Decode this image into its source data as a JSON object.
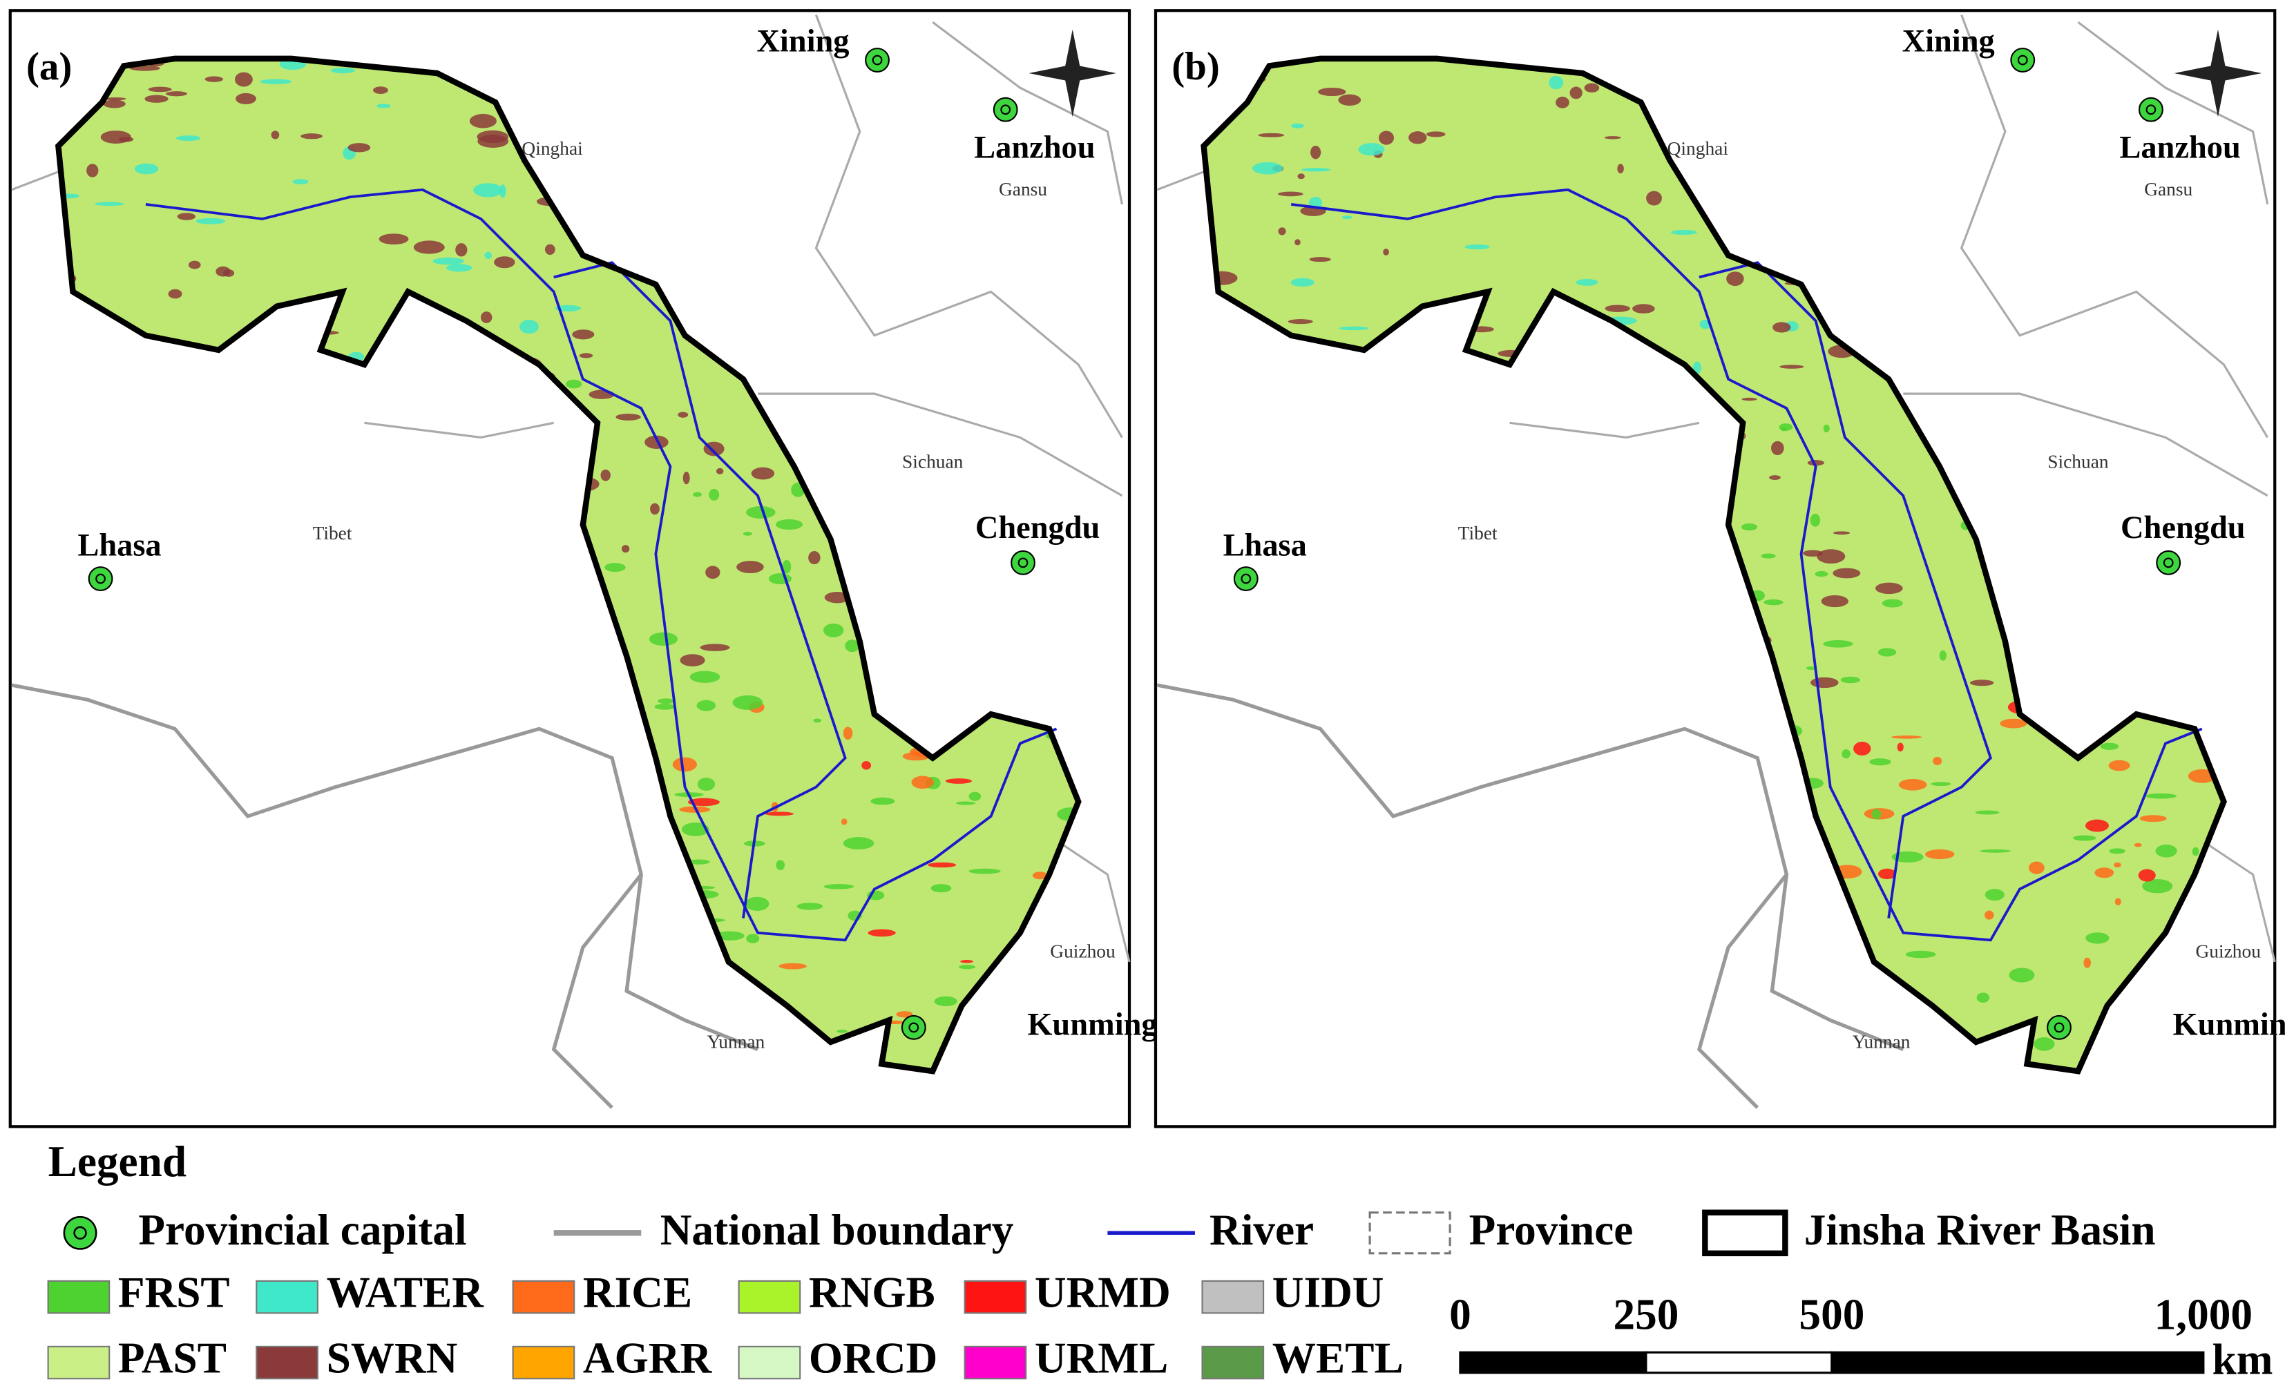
{
  "panels": [
    {
      "label": "(a)",
      "cities": [
        {
          "name": "Xining"
        },
        {
          "name": "Lanzhou"
        },
        {
          "name": "Chengdu"
        },
        {
          "name": "Lhasa"
        },
        {
          "name": "Kunming"
        }
      ],
      "provinces": [
        {
          "name": "Qinghai"
        },
        {
          "name": "Gansu"
        },
        {
          "name": "Sichuan"
        },
        {
          "name": "Tibet"
        },
        {
          "name": "Guizhou"
        },
        {
          "name": "Yunnan"
        }
      ]
    },
    {
      "label": "(b)",
      "cities": [
        {
          "name": "Xining"
        },
        {
          "name": "Lanzhou"
        },
        {
          "name": "Chengdu"
        },
        {
          "name": "Lhasa"
        },
        {
          "name": "Kunming"
        }
      ],
      "provinces": [
        {
          "name": "Qinghai"
        },
        {
          "name": "Gansu"
        },
        {
          "name": "Sichuan"
        },
        {
          "name": "Tibet"
        },
        {
          "name": "Guizhou"
        },
        {
          "name": "Yunnan"
        }
      ]
    }
  ],
  "legend": {
    "title": "Legend",
    "symbols": [
      {
        "label": "Provincial capital"
      },
      {
        "label": "National boundary"
      },
      {
        "label": "River"
      },
      {
        "label": "Province"
      },
      {
        "label": "Jinsha River Basin"
      }
    ],
    "land_use": [
      {
        "label": "FRST",
        "color": "#4ed22f"
      },
      {
        "label": "WATER",
        "color": "#3ee8c8"
      },
      {
        "label": "RICE",
        "color": "#ff6a1a"
      },
      {
        "label": "RNGB",
        "color": "#aaf22a"
      },
      {
        "label": "URMD",
        "color": "#ff1414"
      },
      {
        "label": "UIDU",
        "color": "#c0c0c0"
      },
      {
        "label": "PAST",
        "color": "#c9ef86"
      },
      {
        "label": "SWRN",
        "color": "#8b3a3a"
      },
      {
        "label": "AGRR",
        "color": "#ffa500"
      },
      {
        "label": "ORCD",
        "color": "#d4f7c4"
      },
      {
        "label": "URML",
        "color": "#ff00cc"
      },
      {
        "label": "WETL",
        "color": "#5a9a48"
      }
    ]
  },
  "scale_bar": {
    "ticks": [
      0,
      250,
      500,
      {
        "value": 1000,
        "label": "1,000"
      }
    ],
    "unit": "km"
  }
}
